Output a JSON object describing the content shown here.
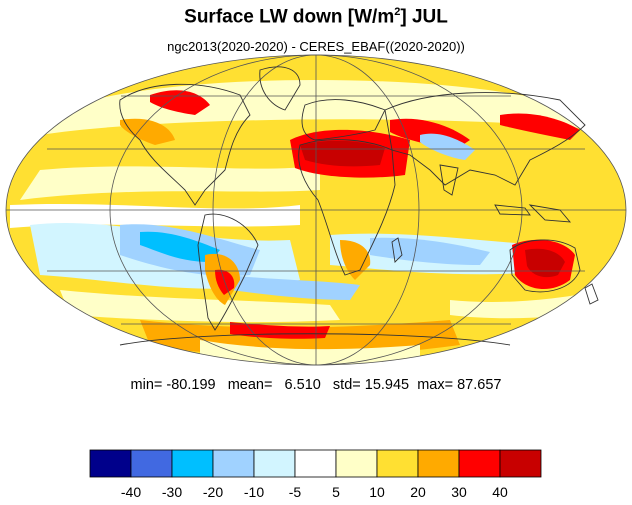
{
  "title": {
    "main": "Surface LW down [W/m",
    "sup": "2",
    "tail": "]  JUL"
  },
  "subtitle": "ngc2013(2020-2020) - CERES_EBAF((2020-2020))",
  "stats": {
    "min_label": "min=",
    "min": "-80.199",
    "mean_label": "mean=",
    "mean": "6.510",
    "std_label": "std=",
    "std": "15.945",
    "max_label": "max=",
    "max": "87.657"
  },
  "colorbar": {
    "colors": [
      "#00008b",
      "#4169e1",
      "#00bfff",
      "#a0d2ff",
      "#d2f5ff",
      "#ffffff",
      "#ffffc8",
      "#ffe032",
      "#ffaa00",
      "#ff0000",
      "#c80000"
    ],
    "tick_labels": [
      "-40",
      "-30",
      "-20",
      "-10",
      "-5",
      "5",
      "10",
      "20",
      "30",
      "40"
    ]
  },
  "map": {
    "projection": "mollweide",
    "colors": {
      "ocean_base": "#ffe032",
      "land_outline": "#333333",
      "grid": "#555555"
    }
  }
}
